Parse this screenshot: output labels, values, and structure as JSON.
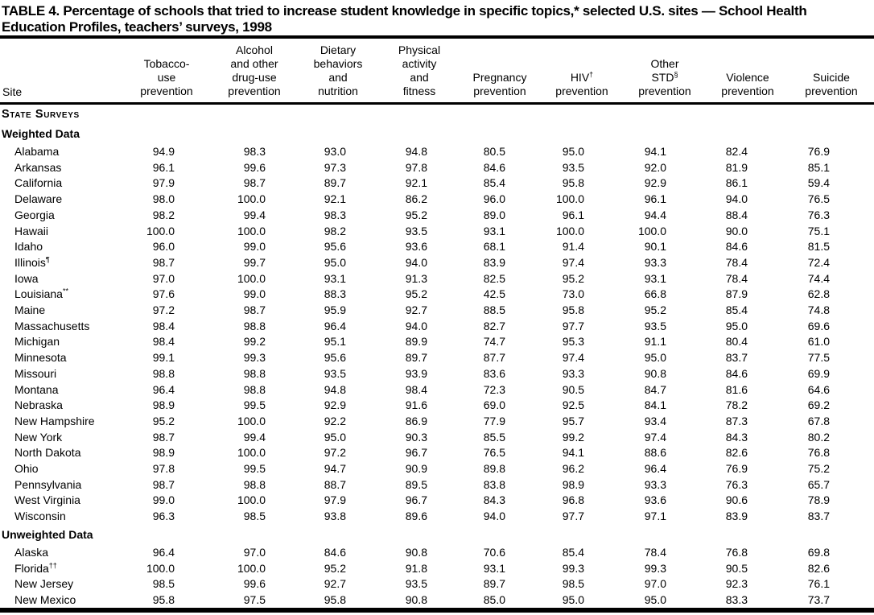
{
  "title": "TABLE 4. Percentage of schools that tried to increase student knowledge in specific topics,* selected U.S. sites — School Health Education Profiles, teachers’ surveys, 1998",
  "table": {
    "columns": [
      {
        "key": "site",
        "label": "Site"
      },
      {
        "key": "tobacco",
        "lines": [
          "Tobacco-",
          "use",
          "prevention"
        ]
      },
      {
        "key": "alcohol",
        "lines": [
          "Alcohol",
          "and other",
          "drug-use",
          "prevention"
        ]
      },
      {
        "key": "dietary",
        "lines": [
          "Dietary",
          "behaviors",
          "and",
          "nutrition"
        ]
      },
      {
        "key": "physical",
        "lines": [
          "Physical",
          "activity",
          "and",
          "fitness"
        ]
      },
      {
        "key": "pregnancy",
        "lines": [
          "Pregnancy",
          "prevention"
        ]
      },
      {
        "key": "hiv",
        "lines": [
          "HIV",
          "prevention"
        ],
        "sup": "†",
        "sup_line": 0
      },
      {
        "key": "std",
        "lines": [
          "Other",
          "STD",
          "prevention"
        ],
        "sup": "§",
        "sup_line": 1
      },
      {
        "key": "violence",
        "lines": [
          "Violence",
          "prevention"
        ]
      },
      {
        "key": "suicide",
        "lines": [
          "Suicide",
          "prevention"
        ]
      }
    ],
    "groups": [
      {
        "type": "section",
        "label": "State Surveys"
      },
      {
        "type": "subsection",
        "label": "Weighted Data",
        "rows": [
          {
            "site": "Alabama",
            "sup": "",
            "values": [
              "94.9",
              "98.3",
              "93.0",
              "94.8",
              "80.5",
              "95.0",
              "94.1",
              "82.4",
              "76.9"
            ]
          },
          {
            "site": "Arkansas",
            "sup": "",
            "values": [
              "96.1",
              "99.6",
              "97.3",
              "97.8",
              "84.6",
              "93.5",
              "92.0",
              "81.9",
              "85.1"
            ]
          },
          {
            "site": "California",
            "sup": "",
            "values": [
              "97.9",
              "98.7",
              "89.7",
              "92.1",
              "85.4",
              "95.8",
              "92.9",
              "86.1",
              "59.4"
            ]
          },
          {
            "site": "Delaware",
            "sup": "",
            "values": [
              "98.0",
              "100.0",
              "92.1",
              "86.2",
              "96.0",
              "100.0",
              "96.1",
              "94.0",
              "76.5"
            ]
          },
          {
            "site": "Georgia",
            "sup": "",
            "values": [
              "98.2",
              "99.4",
              "98.3",
              "95.2",
              "89.0",
              "96.1",
              "94.4",
              "88.4",
              "76.3"
            ]
          },
          {
            "site": "Hawaii",
            "sup": "",
            "values": [
              "100.0",
              "100.0",
              "98.2",
              "93.5",
              "93.1",
              "100.0",
              "100.0",
              "90.0",
              "75.1"
            ]
          },
          {
            "site": "Idaho",
            "sup": "",
            "values": [
              "96.0",
              "99.0",
              "95.6",
              "93.6",
              "68.1",
              "91.4",
              "90.1",
              "84.6",
              "81.5"
            ]
          },
          {
            "site": "Illinois",
            "sup": "¶",
            "values": [
              "98.7",
              "99.7",
              "95.0",
              "94.0",
              "83.9",
              "97.4",
              "93.3",
              "78.4",
              "72.4"
            ]
          },
          {
            "site": "Iowa",
            "sup": "",
            "values": [
              "97.0",
              "100.0",
              "93.1",
              "91.3",
              "82.5",
              "95.2",
              "93.1",
              "78.4",
              "74.4"
            ]
          },
          {
            "site": "Louisiana",
            "sup": "**",
            "values": [
              "97.6",
              "99.0",
              "88.3",
              "95.2",
              "42.5",
              "73.0",
              "66.8",
              "87.9",
              "62.8"
            ]
          },
          {
            "site": "Maine",
            "sup": "",
            "values": [
              "97.2",
              "98.7",
              "95.9",
              "92.7",
              "88.5",
              "95.8",
              "95.2",
              "85.4",
              "74.8"
            ]
          },
          {
            "site": "Massachusetts",
            "sup": "",
            "values": [
              "98.4",
              "98.8",
              "96.4",
              "94.0",
              "82.7",
              "97.7",
              "93.5",
              "95.0",
              "69.6"
            ]
          },
          {
            "site": "Michigan",
            "sup": "",
            "values": [
              "98.4",
              "99.2",
              "95.1",
              "89.9",
              "74.7",
              "95.3",
              "91.1",
              "80.4",
              "61.0"
            ]
          },
          {
            "site": "Minnesota",
            "sup": "",
            "values": [
              "99.1",
              "99.3",
              "95.6",
              "89.7",
              "87.7",
              "97.4",
              "95.0",
              "83.7",
              "77.5"
            ]
          },
          {
            "site": "Missouri",
            "sup": "",
            "values": [
              "98.8",
              "98.8",
              "93.5",
              "93.9",
              "83.6",
              "93.3",
              "90.8",
              "84.6",
              "69.9"
            ]
          },
          {
            "site": "Montana",
            "sup": "",
            "values": [
              "96.4",
              "98.8",
              "94.8",
              "98.4",
              "72.3",
              "90.5",
              "84.7",
              "81.6",
              "64.6"
            ]
          },
          {
            "site": "Nebraska",
            "sup": "",
            "values": [
              "98.9",
              "99.5",
              "92.9",
              "91.6",
              "69.0",
              "92.5",
              "84.1",
              "78.2",
              "69.2"
            ]
          },
          {
            "site": "New Hampshire",
            "sup": "",
            "values": [
              "95.2",
              "100.0",
              "92.2",
              "86.9",
              "77.9",
              "95.7",
              "93.4",
              "87.3",
              "67.8"
            ]
          },
          {
            "site": "New York",
            "sup": "",
            "values": [
              "98.7",
              "99.4",
              "95.0",
              "90.3",
              "85.5",
              "99.2",
              "97.4",
              "84.3",
              "80.2"
            ]
          },
          {
            "site": "North Dakota",
            "sup": "",
            "values": [
              "98.9",
              "100.0",
              "97.2",
              "96.7",
              "76.5",
              "94.1",
              "88.6",
              "82.6",
              "76.8"
            ]
          },
          {
            "site": "Ohio",
            "sup": "",
            "values": [
              "97.8",
              "99.5",
              "94.7",
              "90.9",
              "89.8",
              "96.2",
              "96.4",
              "76.9",
              "75.2"
            ]
          },
          {
            "site": "Pennsylvania",
            "sup": "",
            "values": [
              "98.7",
              "98.8",
              "88.7",
              "89.5",
              "83.8",
              "98.9",
              "93.3",
              "76.3",
              "65.7"
            ]
          },
          {
            "site": "West Virginia",
            "sup": "",
            "values": [
              "99.0",
              "100.0",
              "97.9",
              "96.7",
              "84.3",
              "96.8",
              "93.6",
              "90.6",
              "78.9"
            ]
          },
          {
            "site": "Wisconsin",
            "sup": "",
            "values": [
              "96.3",
              "98.5",
              "93.8",
              "89.6",
              "94.0",
              "97.7",
              "97.1",
              "83.9",
              "83.7"
            ]
          }
        ]
      },
      {
        "type": "subsection",
        "label": "Unweighted Data",
        "rows": [
          {
            "site": "Alaska",
            "sup": "",
            "values": [
              "96.4",
              "97.0",
              "84.6",
              "90.8",
              "70.6",
              "85.4",
              "78.4",
              "76.8",
              "69.8"
            ]
          },
          {
            "site": "Florida",
            "sup": "††",
            "values": [
              "100.0",
              "100.0",
              "95.2",
              "91.8",
              "93.1",
              "99.3",
              "99.3",
              "90.5",
              "82.6"
            ]
          },
          {
            "site": "New Jersey",
            "sup": "",
            "values": [
              "98.5",
              "99.6",
              "92.7",
              "93.5",
              "89.7",
              "98.5",
              "97.0",
              "92.3",
              "76.1"
            ]
          },
          {
            "site": "New Mexico",
            "sup": "",
            "values": [
              "95.8",
              "97.5",
              "95.8",
              "90.8",
              "85.0",
              "95.0",
              "95.0",
              "83.3",
              "73.7"
            ]
          }
        ]
      }
    ]
  }
}
